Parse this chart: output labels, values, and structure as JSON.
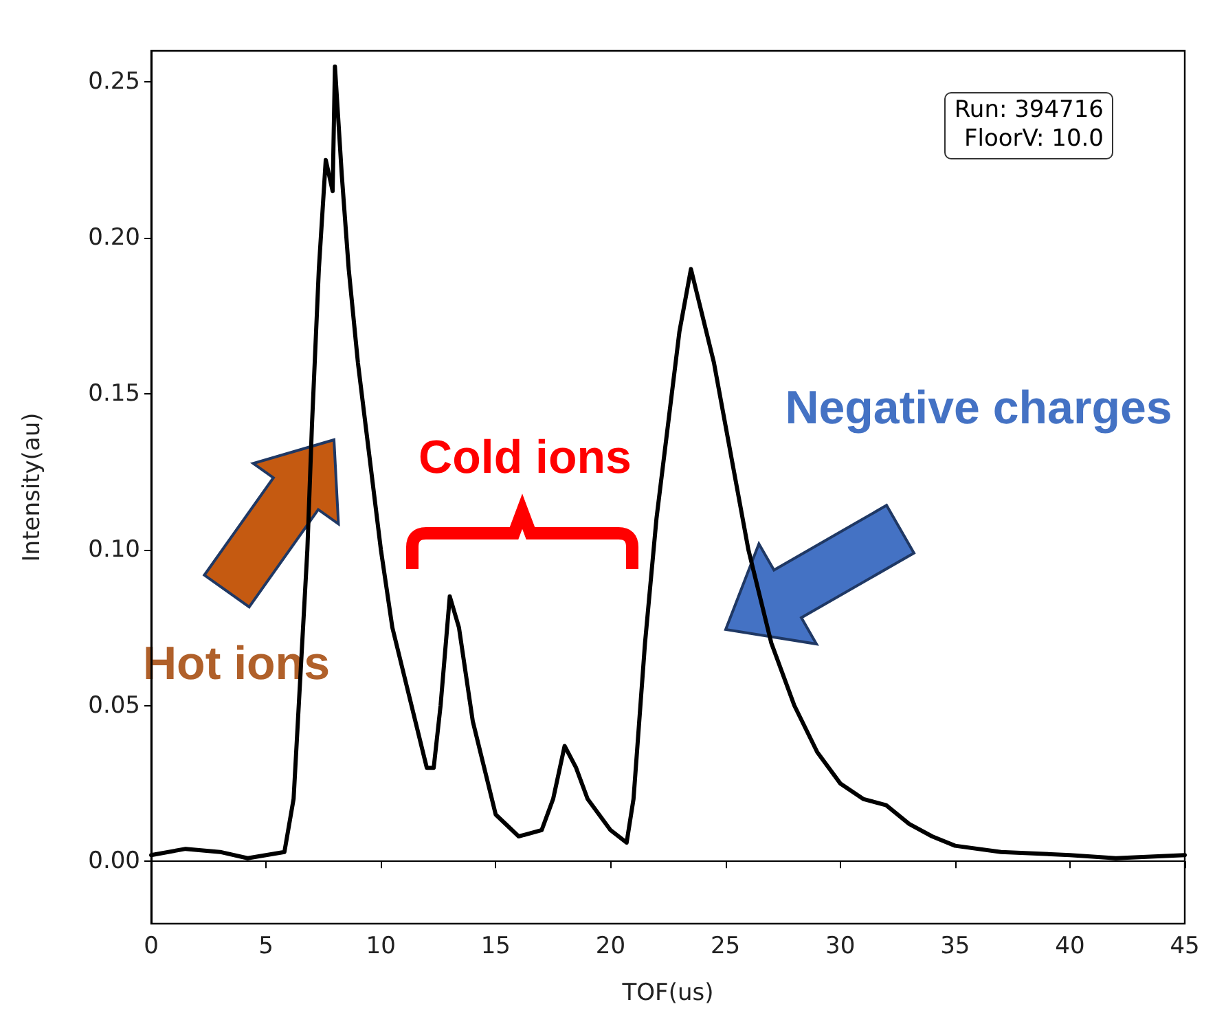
{
  "chart_data": {
    "type": "line",
    "xlabel": "TOF(us)",
    "ylabel": "Intensity(au)",
    "x": [
      0,
      1.5,
      3,
      4.2,
      5,
      5.8,
      6.2,
      6.5,
      6.8,
      7.0,
      7.3,
      7.6,
      7.9,
      8.0,
      8.3,
      8.6,
      9.0,
      9.5,
      10,
      10.5,
      11,
      11.5,
      12,
      12.3,
      12.6,
      13,
      13.4,
      14,
      14.5,
      15,
      16,
      17,
      17.5,
      18,
      18.5,
      19,
      19.5,
      20,
      20.7,
      21,
      21.5,
      22,
      22.5,
      23,
      23.5,
      24,
      24.5,
      25,
      25.5,
      26,
      27,
      28,
      29,
      30,
      31,
      32,
      33,
      34,
      35,
      37,
      40,
      42,
      45
    ],
    "series": [
      {
        "color": "#000000",
        "values": [
          0.002,
          0.004,
          0.003,
          0.001,
          0.002,
          0.003,
          0.02,
          0.06,
          0.1,
          0.14,
          0.19,
          0.225,
          0.215,
          0.255,
          0.22,
          0.19,
          0.16,
          0.13,
          0.1,
          0.075,
          0.06,
          0.045,
          0.03,
          0.03,
          0.05,
          0.085,
          0.075,
          0.045,
          0.03,
          0.015,
          0.008,
          0.01,
          0.02,
          0.037,
          0.03,
          0.02,
          0.015,
          0.01,
          0.006,
          0.02,
          0.07,
          0.11,
          0.14,
          0.17,
          0.19,
          0.175,
          0.16,
          0.14,
          0.12,
          0.1,
          0.07,
          0.05,
          0.035,
          0.025,
          0.02,
          0.018,
          0.012,
          0.008,
          0.005,
          0.003,
          0.002,
          0.001,
          0.002
        ]
      }
    ],
    "xlim": [
      0,
      45
    ],
    "xticks": [
      0,
      5,
      10,
      15,
      20,
      25,
      30,
      35,
      40,
      45
    ],
    "ylim": [
      -0.02,
      0.26
    ],
    "yticks": [
      {
        "value": 0,
        "label": "0.00"
      },
      {
        "value": 0.05,
        "label": "0.05"
      },
      {
        "value": 0.1,
        "label": "0.10"
      },
      {
        "value": 0.15,
        "label": "0.15"
      },
      {
        "value": 0.2,
        "label": "0.20"
      },
      {
        "value": 0.25,
        "label": "0.25"
      }
    ],
    "marker": "none",
    "line_style": "solid",
    "annotations": [
      "Run: 394716\nFloorV: 10.0",
      "Hot ions",
      "Cold ions",
      "Negative charges"
    ]
  }
}
